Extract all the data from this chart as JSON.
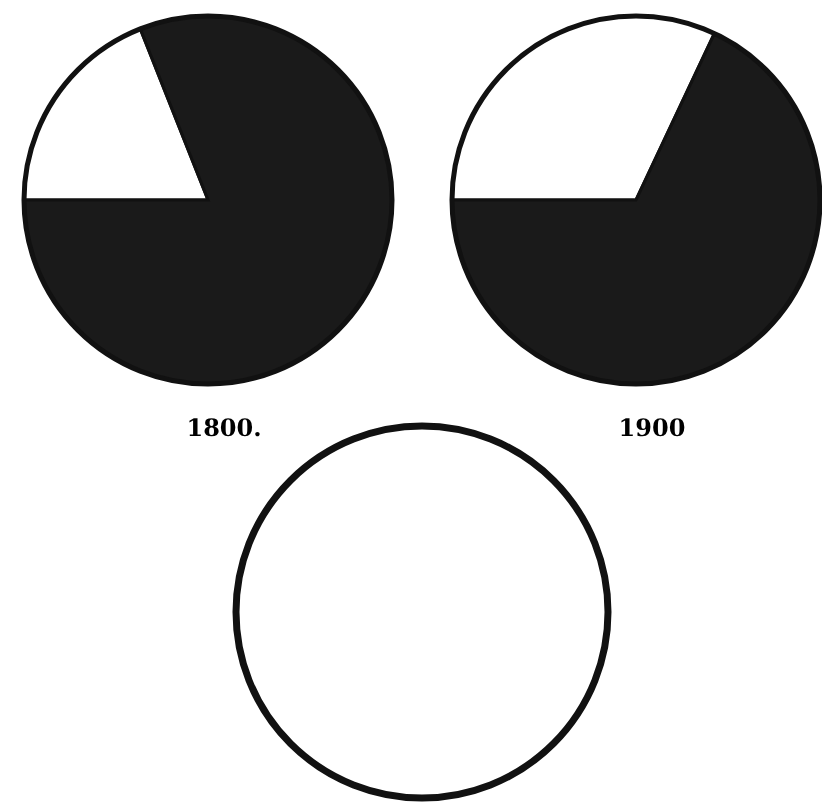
{
  "chart_data": [
    {
      "type": "pie",
      "title": "1800.",
      "categories": [
        null,
        null
      ],
      "values": [
        19,
        81
      ],
      "colors": [
        "#ffffff",
        "#1a1a1a"
      ]
    },
    {
      "type": "pie",
      "title": "1900",
      "categories": [
        null,
        null
      ],
      "values": [
        32,
        68
      ],
      "colors": [
        "#ffffff",
        "#1a1a1a"
      ]
    }
  ]
}
